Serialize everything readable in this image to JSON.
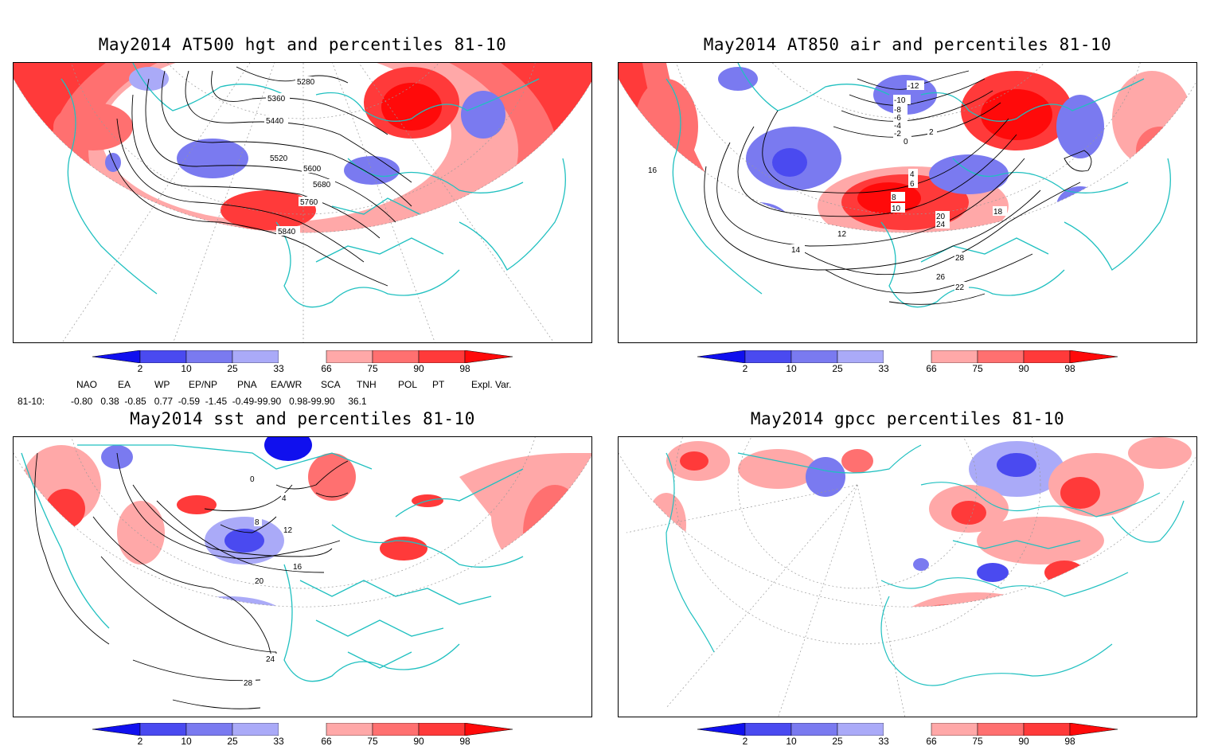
{
  "panels": [
    {
      "title": "May2014 AT500 hgt and percentiles 81-10"
    },
    {
      "title": "May2014 AT850 air and percentiles 81-10"
    },
    {
      "title": "May2014 sst and percentiles 81-10"
    },
    {
      "title": "May2014 gpcc percentiles 81-10"
    }
  ],
  "colorbar": {
    "ticks": [
      "2",
      "10",
      "25",
      "33",
      "66",
      "75",
      "90",
      "98"
    ],
    "colors": {
      "deep_blue": "#1010ee",
      "blue": "#4a4af0",
      "mid_blue": "#7a7af0",
      "light_blue": "#aaaaf8",
      "light_red": "#ffa8a8",
      "mid_red": "#ff7070",
      "red": "#ff3a3a",
      "deep_red": "#ff0a0a"
    }
  },
  "contour_labels": {
    "hgt": [
      "5280",
      "5360",
      "5440",
      "5520",
      "5600",
      "5680",
      "5760",
      "5840"
    ],
    "air": [
      "-12",
      "-10",
      "-8",
      "-6",
      "-4",
      "-2",
      "0",
      "2",
      "4",
      "6",
      "8",
      "10",
      "12",
      "14",
      "16",
      "18",
      "20",
      "22",
      "24",
      "26",
      "28"
    ],
    "sst": [
      "0",
      "4",
      "8",
      "12",
      "16",
      "20",
      "24",
      "28"
    ]
  },
  "indices": {
    "headers": [
      "NAO",
      "EA",
      "WP",
      "EP/NP",
      "PNA",
      "EA/WR",
      "SCA",
      "TNH",
      "POL",
      "PT",
      "Expl. Var."
    ],
    "row_label": "81-10:",
    "values": "-0.80   0.38  -0.85   0.77  -0.59  -1.45  -0.49-99.90   0.98-99.90     36.1"
  },
  "map_colors": {
    "coast": "#20c0c0",
    "grid": "#999999",
    "contour": "#000000"
  }
}
